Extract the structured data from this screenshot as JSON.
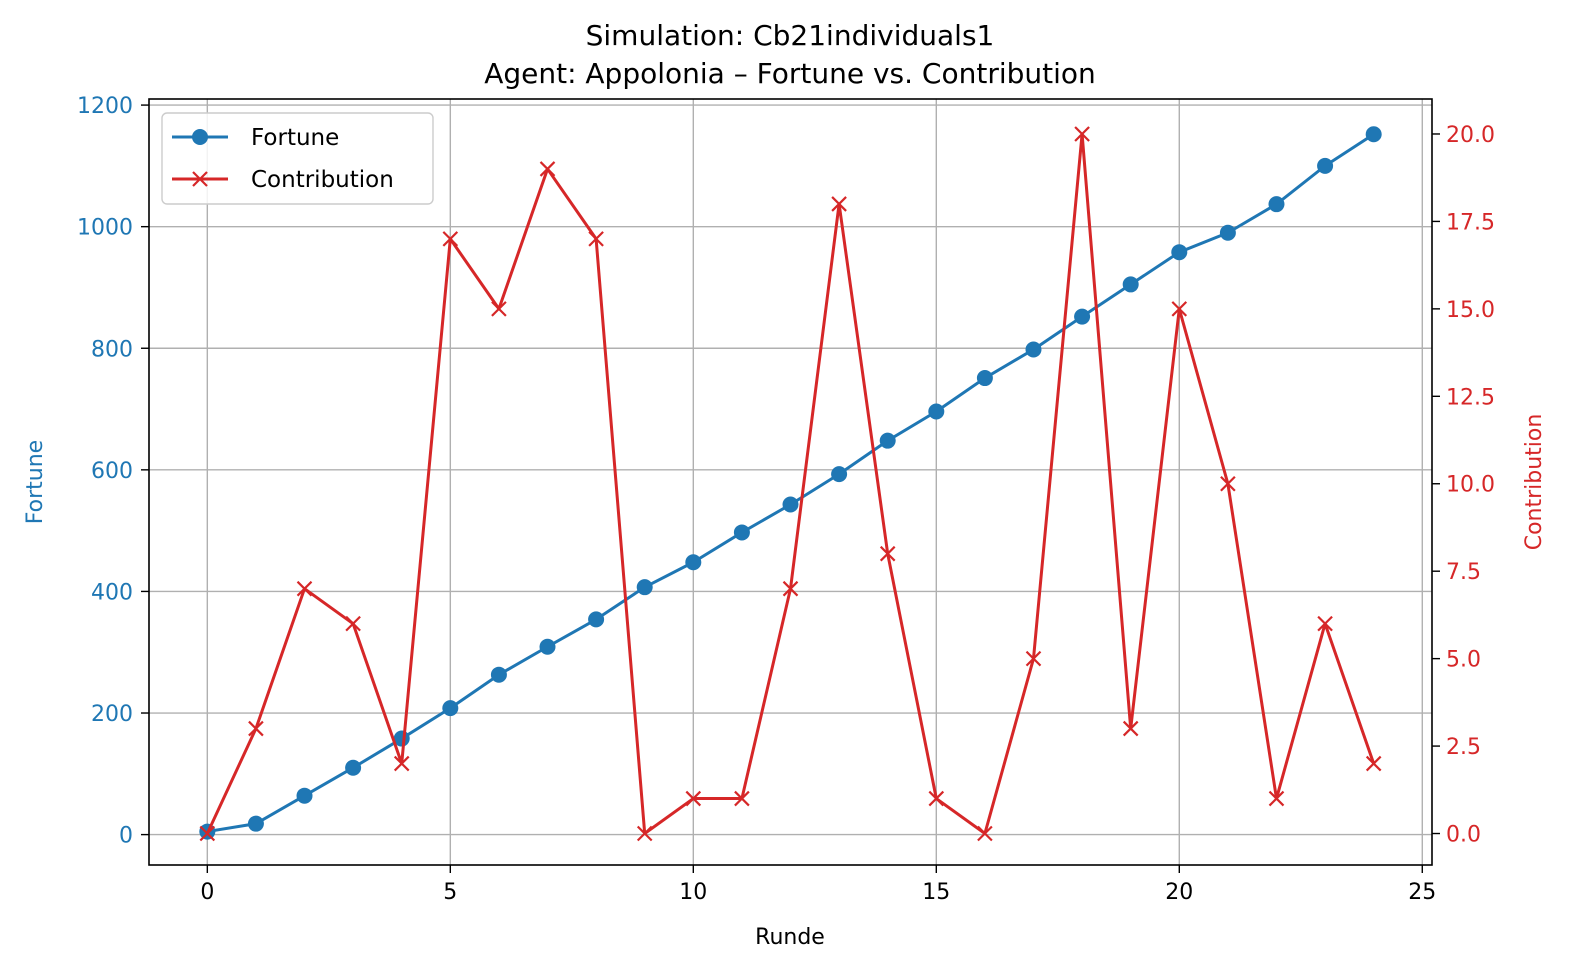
{
  "colors": {
    "fortune": "#1f77b4",
    "contribution": "#d62728",
    "grid": "#b0b0b0",
    "axis": "#000000"
  },
  "chart_data": {
    "type": "line",
    "title": "Simulation: Cb21individuals1",
    "subtitle": "Agent: Appolonia – Fortune vs. Contribution",
    "xlabel": "Runde",
    "ylabel_left": "Fortune",
    "ylabel_right": "Contribution",
    "xlim": [
      -1.2,
      25.2
    ],
    "ylim_left": [
      -50,
      1210
    ],
    "ylim_right": [
      -0.9,
      21.0
    ],
    "x_ticks": [
      0,
      5,
      10,
      15,
      20,
      25
    ],
    "x_tick_labels": [
      "0",
      "5",
      "10",
      "15",
      "20",
      "25"
    ],
    "y_left_ticks": [
      0,
      200,
      400,
      600,
      800,
      1000,
      1200
    ],
    "y_left_tick_labels": [
      "0",
      "200",
      "400",
      "600",
      "800",
      "1000",
      "1200"
    ],
    "y_right_ticks": [
      0,
      2.5,
      5,
      7.5,
      10,
      12.5,
      15,
      17.5,
      20
    ],
    "y_right_tick_labels": [
      "0.0",
      "2.5",
      "5.0",
      "7.5",
      "10.0",
      "12.5",
      "15.0",
      "17.5",
      "20.0"
    ],
    "grid": true,
    "legend_position": "top-left",
    "x": [
      0,
      1,
      2,
      3,
      4,
      5,
      6,
      7,
      8,
      9,
      10,
      11,
      12,
      13,
      14,
      15,
      16,
      17,
      18,
      19,
      20,
      21,
      22,
      23,
      24
    ],
    "series": [
      {
        "name": "Fortune",
        "axis": "left",
        "marker": "circle",
        "values": [
          5,
          18,
          64,
          110,
          158,
          208,
          263,
          309,
          354,
          407,
          448,
          497,
          543,
          593,
          648,
          696,
          751,
          798,
          852,
          905,
          958,
          990,
          1037,
          1100,
          1152
        ]
      },
      {
        "name": "Contribution",
        "axis": "right",
        "marker": "x",
        "values": [
          0,
          3,
          7,
          6,
          2,
          17,
          15,
          19,
          17,
          0,
          1,
          1,
          7,
          18,
          8,
          1,
          0,
          5,
          20,
          3,
          15,
          10,
          1,
          6,
          2
        ]
      }
    ]
  }
}
